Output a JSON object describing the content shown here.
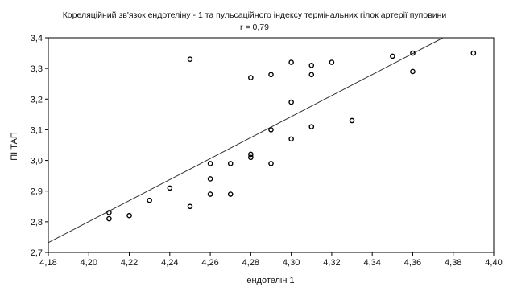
{
  "chart_data": {
    "type": "scatter",
    "title": "Кореляційний зв'язок ендотеліну - 1 та пульсаційного індексу термінальних гілок артерії пуповини",
    "subtitle": "r = 0,79",
    "xlabel": "ендотелін 1",
    "ylabel": "ПІ ТАП",
    "xlim": [
      4.18,
      4.4
    ],
    "ylim": [
      2.7,
      3.4
    ],
    "x_ticks": [
      "4,18",
      "4,20",
      "4,22",
      "4,24",
      "4,26",
      "4,28",
      "4,30",
      "4,32",
      "4,34",
      "4,36",
      "4,38",
      "4,40"
    ],
    "y_ticks": [
      "2,7",
      "2,8",
      "2,9",
      "3,0",
      "3,1",
      "3,2",
      "3,3",
      "3,4"
    ],
    "grid": false,
    "legend": "none",
    "series": [
      {
        "points": [
          [
            4.21,
            2.83
          ],
          [
            4.21,
            2.81
          ],
          [
            4.22,
            2.82
          ],
          [
            4.23,
            2.87
          ],
          [
            4.24,
            2.91
          ],
          [
            4.25,
            2.85
          ],
          [
            4.25,
            3.33
          ],
          [
            4.26,
            2.99
          ],
          [
            4.26,
            2.94
          ],
          [
            4.26,
            2.89
          ],
          [
            4.27,
            2.99
          ],
          [
            4.27,
            2.89
          ],
          [
            4.28,
            3.27
          ],
          [
            4.28,
            3.02
          ],
          [
            4.28,
            3.01
          ],
          [
            4.29,
            3.28
          ],
          [
            4.29,
            3.1
          ],
          [
            4.29,
            2.99
          ],
          [
            4.3,
            3.32
          ],
          [
            4.3,
            3.19
          ],
          [
            4.3,
            3.07
          ],
          [
            4.31,
            3.31
          ],
          [
            4.31,
            3.28
          ],
          [
            4.31,
            3.11
          ],
          [
            4.32,
            3.32
          ],
          [
            4.33,
            3.13
          ],
          [
            4.35,
            3.34
          ],
          [
            4.36,
            3.35
          ],
          [
            4.36,
            3.29
          ],
          [
            4.39,
            3.35
          ]
        ]
      }
    ],
    "trend_line": {
      "x": [
        4.18,
        4.375
      ],
      "y": [
        2.732,
        3.4
      ]
    }
  }
}
